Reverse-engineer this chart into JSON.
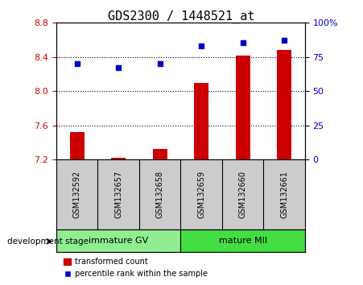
{
  "title": "GDS2300 / 1448521_at",
  "samples": [
    "GSM132592",
    "GSM132657",
    "GSM132658",
    "GSM132659",
    "GSM132660",
    "GSM132661"
  ],
  "bar_values": [
    7.52,
    7.22,
    7.32,
    8.1,
    8.42,
    8.48
  ],
  "bar_baseline": 7.2,
  "percentile_values": [
    70,
    67,
    70,
    83,
    85.5,
    87
  ],
  "left_ylim": [
    7.2,
    8.8
  ],
  "right_ylim": [
    0,
    100
  ],
  "left_yticks": [
    7.2,
    7.6,
    8.0,
    8.4,
    8.8
  ],
  "right_yticks": [
    0,
    25,
    50,
    75,
    100
  ],
  "right_yticklabels": [
    "0",
    "25",
    "50",
    "75",
    "100%"
  ],
  "bar_color": "#cc0000",
  "dot_color": "#0000cc",
  "categories": [
    {
      "label": "immature GV",
      "start": 0,
      "end": 3,
      "color": "#90ee90"
    },
    {
      "label": "mature MII",
      "start": 3,
      "end": 6,
      "color": "#44dd44"
    }
  ],
  "category_label": "development stage",
  "legend_bar_label": "transformed count",
  "legend_dot_label": "percentile rank within the sample",
  "left_label_color": "#cc0000",
  "right_label_color": "#0000cc",
  "title_fontsize": 11,
  "tick_fontsize": 8,
  "sample_box_color": "#cccccc",
  "bar_width": 0.35,
  "grid_ticks": [
    7.6,
    8.0,
    8.4
  ]
}
